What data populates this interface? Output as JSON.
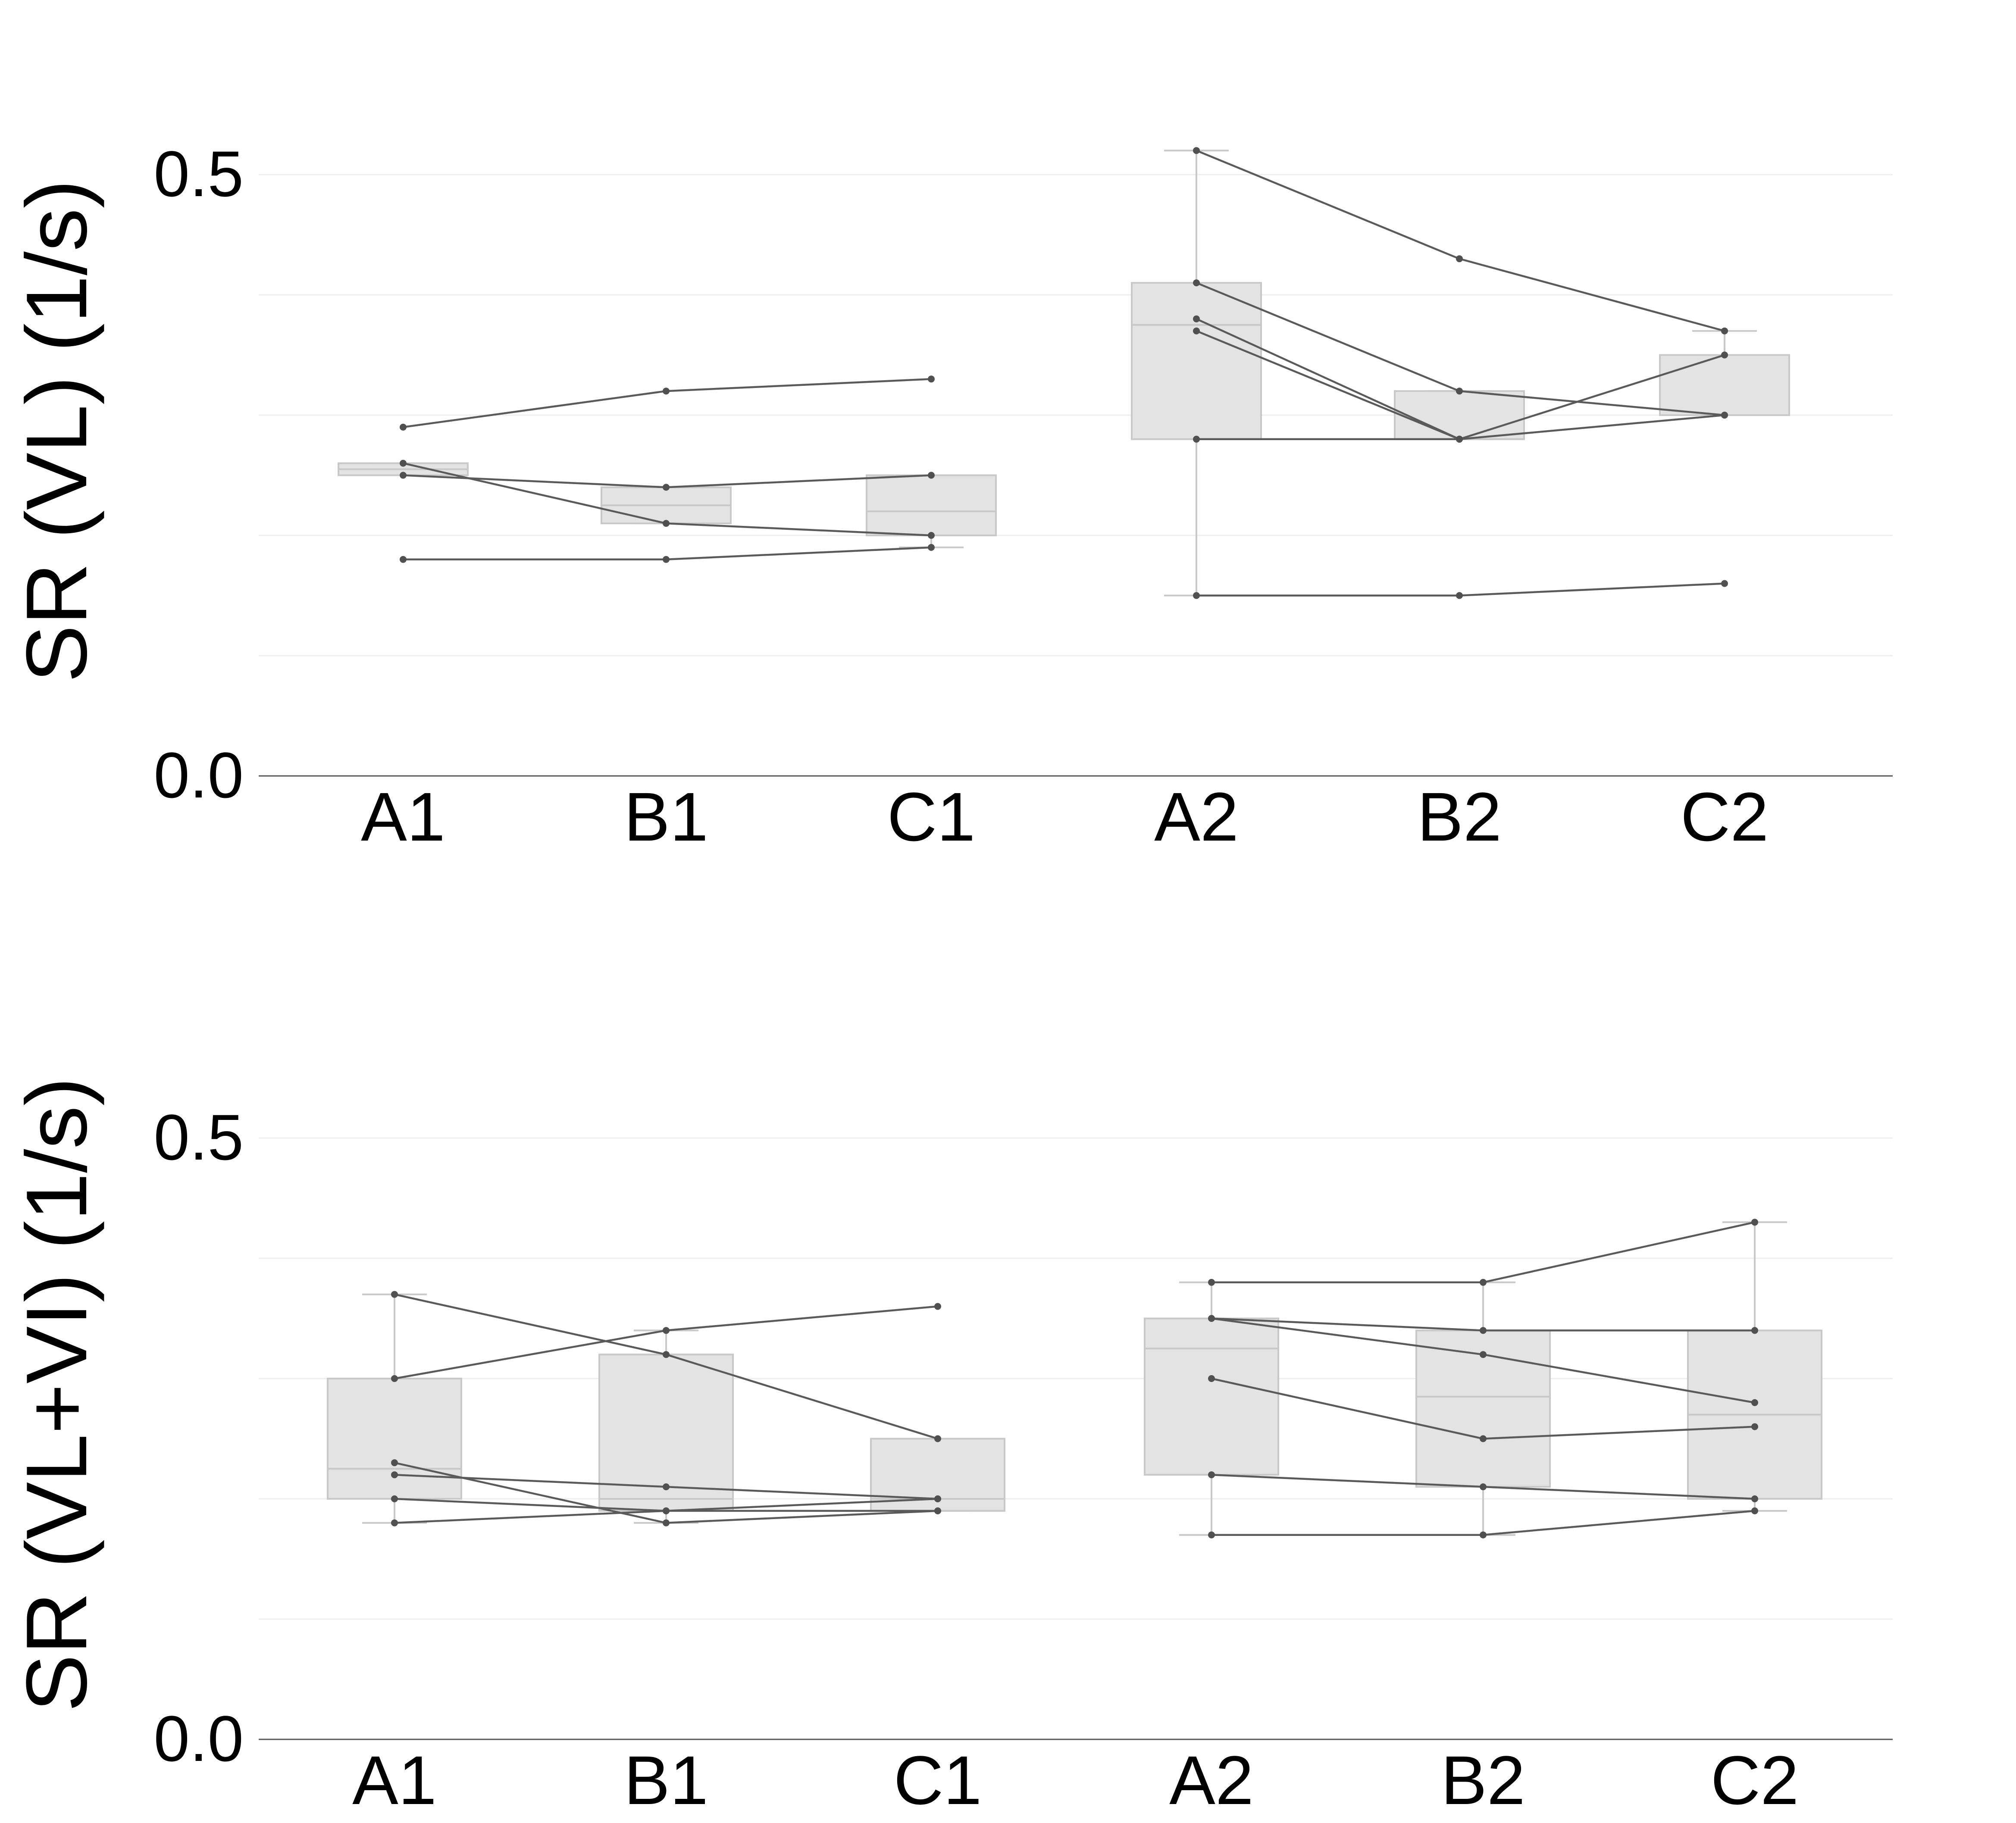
{
  "chart_data": [
    {
      "type": "box",
      "ylabel": "SR (VL)  (1/s)",
      "categories": [
        "A1",
        "B1",
        "C1",
        "A2",
        "B2",
        "C2"
      ],
      "ylim": [
        0.0,
        0.55
      ],
      "yticks": [
        0.0,
        0.5
      ],
      "yticks_labels": [
        "0.0",
        "0.5"
      ],
      "grid_y": [
        0.1,
        0.2,
        0.3,
        0.4,
        0.5
      ],
      "boxes": [
        {
          "category": "A1",
          "whisker_low": 0.25,
          "q1": 0.25,
          "median": 0.255,
          "q3": 0.26,
          "whisker_high": 0.26
        },
        {
          "category": "B1",
          "whisker_low": 0.21,
          "q1": 0.21,
          "median": 0.225,
          "q3": 0.24,
          "whisker_high": 0.24
        },
        {
          "category": "C1",
          "whisker_low": 0.19,
          "q1": 0.2,
          "median": 0.22,
          "q3": 0.25,
          "whisker_high": 0.25
        },
        {
          "category": "A2",
          "whisker_low": 0.15,
          "q1": 0.28,
          "median": 0.375,
          "q3": 0.41,
          "whisker_high": 0.52
        },
        {
          "category": "B2",
          "whisker_low": 0.28,
          "q1": 0.28,
          "median": 0.28,
          "q3": 0.32,
          "whisker_high": 0.32
        },
        {
          "category": "C2",
          "whisker_low": 0.3,
          "q1": 0.3,
          "median": 0.3,
          "q3": 0.35,
          "whisker_high": 0.37
        }
      ],
      "subject_lines": [
        {
          "group": 1,
          "points": [
            [
              "A1",
              0.29
            ],
            [
              "B1",
              0.32
            ],
            [
              "C1",
              0.33
            ]
          ]
        },
        {
          "group": 1,
          "points": [
            [
              "A1",
              0.26
            ],
            [
              "B1",
              0.21
            ],
            [
              "C1",
              0.2
            ]
          ]
        },
        {
          "group": 1,
          "points": [
            [
              "A1",
              0.25
            ],
            [
              "B1",
              0.24
            ],
            [
              "C1",
              0.25
            ]
          ]
        },
        {
          "group": 1,
          "points": [
            [
              "A1",
              0.18
            ],
            [
              "B1",
              0.18
            ],
            [
              "C1",
              0.19
            ]
          ]
        },
        {
          "group": 2,
          "points": [
            [
              "A2",
              0.52
            ],
            [
              "B2",
              0.43
            ],
            [
              "C2",
              0.37
            ]
          ]
        },
        {
          "group": 2,
          "points": [
            [
              "A2",
              0.41
            ],
            [
              "B2",
              0.32
            ],
            [
              "C2",
              0.3
            ]
          ]
        },
        {
          "group": 2,
          "points": [
            [
              "A2",
              0.38
            ],
            [
              "B2",
              0.28
            ],
            [
              "C2",
              0.3
            ]
          ]
        },
        {
          "group": 2,
          "points": [
            [
              "A2",
              0.37
            ],
            [
              "B2",
              0.28
            ],
            [
              "C2",
              0.35
            ]
          ]
        },
        {
          "group": 2,
          "points": [
            [
              "A2",
              0.28
            ],
            [
              "B2",
              0.28
            ]
          ]
        },
        {
          "group": 2,
          "points": [
            [
              "A2",
              0.15
            ],
            [
              "B2",
              0.15
            ],
            [
              "C2",
              0.16
            ]
          ]
        }
      ]
    },
    {
      "type": "box",
      "ylabel": "SR (VL+VI) (1/s)",
      "categories": [
        "A1",
        "B1",
        "C1",
        "A2",
        "B2",
        "C2"
      ],
      "ylim": [
        0.0,
        0.55
      ],
      "yticks": [
        0.0,
        0.5
      ],
      "yticks_labels": [
        "0.0",
        "0.5"
      ],
      "grid_y": [
        0.1,
        0.2,
        0.3,
        0.4,
        0.5
      ],
      "boxes": [
        {
          "category": "A1",
          "whisker_low": 0.18,
          "q1": 0.2,
          "median": 0.225,
          "q3": 0.3,
          "whisker_high": 0.37
        },
        {
          "category": "B1",
          "whisker_low": 0.18,
          "q1": 0.19,
          "median": 0.2,
          "q3": 0.32,
          "whisker_high": 0.34
        },
        {
          "category": "C1",
          "whisker_low": 0.19,
          "q1": 0.19,
          "median": 0.2,
          "q3": 0.25,
          "whisker_high": 0.25
        },
        {
          "category": "A2",
          "whisker_low": 0.17,
          "q1": 0.22,
          "median": 0.325,
          "q3": 0.35,
          "whisker_high": 0.38
        },
        {
          "category": "B2",
          "whisker_low": 0.17,
          "q1": 0.21,
          "median": 0.285,
          "q3": 0.34,
          "whisker_high": 0.38
        },
        {
          "category": "C2",
          "whisker_low": 0.19,
          "q1": 0.2,
          "median": 0.27,
          "q3": 0.34,
          "whisker_high": 0.43
        }
      ],
      "subject_lines": [
        {
          "group": 1,
          "points": [
            [
              "A1",
              0.37
            ],
            [
              "B1",
              0.32
            ],
            [
              "C1",
              0.25
            ]
          ]
        },
        {
          "group": 1,
          "points": [
            [
              "A1",
              0.3
            ],
            [
              "B1",
              0.34
            ],
            [
              "C1",
              0.36
            ]
          ]
        },
        {
          "group": 1,
          "points": [
            [
              "A1",
              0.23
            ],
            [
              "B1",
              0.18
            ],
            [
              "C1",
              0.19
            ]
          ]
        },
        {
          "group": 1,
          "points": [
            [
              "A1",
              0.22
            ],
            [
              "B1",
              0.21
            ],
            [
              "C1",
              0.2
            ]
          ]
        },
        {
          "group": 1,
          "points": [
            [
              "A1",
              0.2
            ],
            [
              "B1",
              0.19
            ],
            [
              "C1",
              0.19
            ]
          ]
        },
        {
          "group": 1,
          "points": [
            [
              "A1",
              0.18
            ],
            [
              "B1",
              0.19
            ],
            [
              "C1",
              0.2
            ]
          ]
        },
        {
          "group": 2,
          "points": [
            [
              "A2",
              0.38
            ],
            [
              "B2",
              0.38
            ],
            [
              "C2",
              0.43
            ]
          ]
        },
        {
          "group": 2,
          "points": [
            [
              "A2",
              0.35
            ],
            [
              "B2",
              0.34
            ],
            [
              "C2",
              0.34
            ]
          ]
        },
        {
          "group": 2,
          "points": [
            [
              "A2",
              0.35
            ],
            [
              "B2",
              0.32
            ],
            [
              "C2",
              0.28
            ]
          ]
        },
        {
          "group": 2,
          "points": [
            [
              "A2",
              0.3
            ],
            [
              "B2",
              0.25
            ],
            [
              "C2",
              0.26
            ]
          ]
        },
        {
          "group": 2,
          "points": [
            [
              "A2",
              0.22
            ],
            [
              "B2",
              0.21
            ],
            [
              "C2",
              0.2
            ]
          ]
        },
        {
          "group": 2,
          "points": [
            [
              "A2",
              0.17
            ],
            [
              "B2",
              0.17
            ],
            [
              "C2",
              0.19
            ]
          ]
        }
      ]
    }
  ],
  "colors": {
    "box_fill": "#e3e3e3",
    "box_edge": "#c8c8c8",
    "median": "#c8c8c8",
    "whisker": "#c8c8c8",
    "subject_line": "#5a5a5a",
    "subject_point": "#505050",
    "grid": "#eeeeee",
    "axis": "#555555"
  }
}
